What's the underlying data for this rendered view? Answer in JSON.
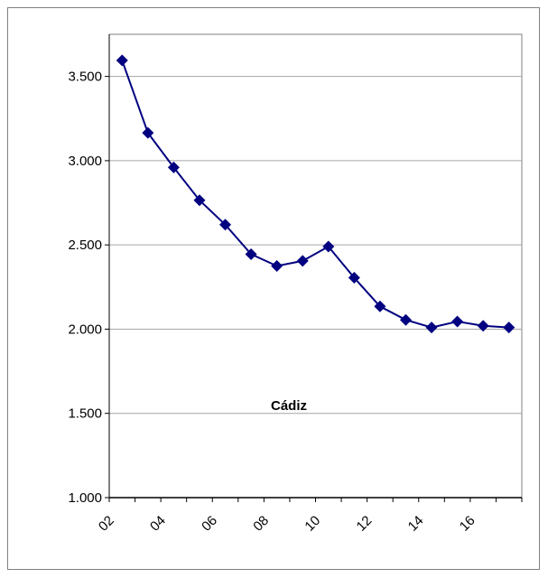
{
  "chart_data": {
    "type": "line",
    "title": "Cádiz",
    "xlabel": "",
    "ylabel": "",
    "x": [
      2002,
      2003,
      2004,
      2005,
      2006,
      2007,
      2008,
      2009,
      2010,
      2011,
      2012,
      2013,
      2014,
      2015,
      2016,
      2017
    ],
    "x_tick_labels": [
      "02",
      "04",
      "06",
      "08",
      "10",
      "12",
      "14",
      "16"
    ],
    "y_tick_labels": [
      "1.000",
      "1.500",
      "2.000",
      "2.500",
      "3.000",
      "3.500"
    ],
    "y_ticks": [
      1000,
      1500,
      2000,
      2500,
      3000,
      3500
    ],
    "ylim": [
      1000,
      3750
    ],
    "grid": "horizontal",
    "series": [
      {
        "values": [
          3595,
          3165,
          2960,
          2765,
          2620,
          2445,
          2375,
          2405,
          2490,
          2305,
          2135,
          2055,
          2010,
          2045,
          2020,
          2010
        ],
        "color": "#000080"
      }
    ],
    "legend": "none"
  }
}
